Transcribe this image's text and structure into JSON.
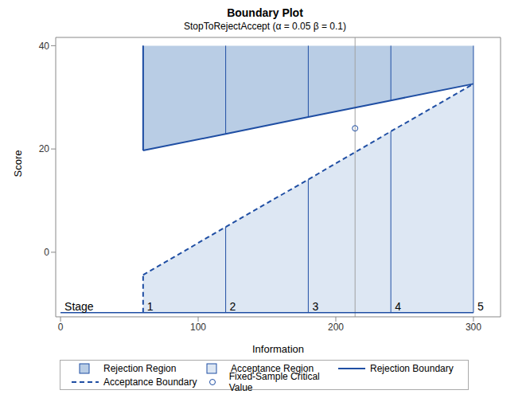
{
  "chart_data": {
    "type": "boundary",
    "title": "Boundary Plot",
    "subtitle": "StopToRejectAccept (α = 0.05  β = 0.1)",
    "x_label": "Information",
    "y_label": "Score",
    "xlim": [
      -3.5,
      319.7
    ],
    "ylim": [
      -12.5,
      41.6
    ],
    "xticks": [
      0,
      100,
      200,
      300
    ],
    "yticks": [
      0,
      20,
      40
    ],
    "stage_label": "Stage",
    "stages": [
      1,
      2,
      3,
      4,
      5
    ],
    "x": [
      60,
      120,
      180,
      240,
      300
    ],
    "series": [
      {
        "name": "Rejection Boundary",
        "color": "#1f4ea3",
        "line_style": "solid",
        "values": [
          19.7,
          22.9,
          26.2,
          29.4,
          32.6
        ]
      },
      {
        "name": "Acceptance Boundary",
        "color": "#1f4ea3",
        "line_style": "dashed",
        "values": [
          -4.4,
          4.9,
          14.1,
          23.4,
          32.6
        ]
      }
    ],
    "regions": [
      {
        "name": "Rejection Region",
        "color": "#b9cde5",
        "bound": 40
      },
      {
        "name": "Acceptance Region",
        "color": "#dde7f3",
        "bound": -11.7
      }
    ],
    "reference": {
      "name": "Fixed-Sample Critical Value",
      "x": 214,
      "y": 24,
      "color": "#1f4ea3",
      "marker": "circle"
    },
    "legend": "bottom"
  }
}
